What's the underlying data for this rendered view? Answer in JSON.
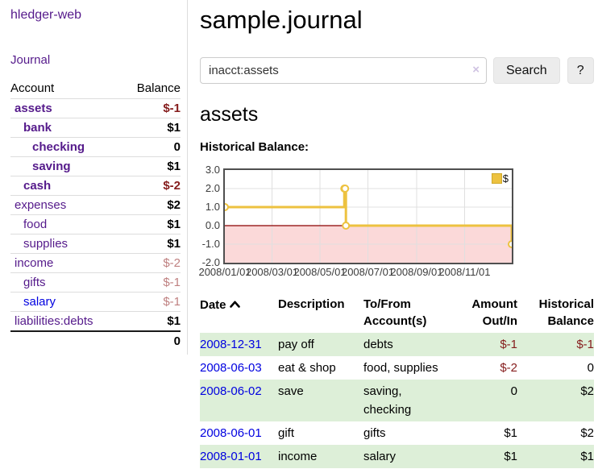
{
  "app": {
    "title": "hledger-web"
  },
  "sidebar": {
    "nav_journal": "Journal",
    "accounts": {
      "header_account": "Account",
      "header_balance": "Balance",
      "rows": [
        {
          "name": "assets",
          "balance": "$-1",
          "level": 0,
          "strong": true,
          "link": "purple",
          "neg": "strong"
        },
        {
          "name": "bank",
          "balance": "$1",
          "level": 1,
          "strong": true,
          "link": "purple",
          "neg": "none"
        },
        {
          "name": "checking",
          "balance": "0",
          "level": 2,
          "strong": true,
          "link": "purple",
          "neg": "none"
        },
        {
          "name": "saving",
          "balance": "$1",
          "level": 2,
          "strong": true,
          "link": "purple",
          "neg": "none"
        },
        {
          "name": "cash",
          "balance": "$-2",
          "level": 1,
          "strong": true,
          "link": "purple",
          "neg": "strong"
        },
        {
          "name": "expenses",
          "balance": "$2",
          "level": 0,
          "strong": false,
          "link": "purple",
          "neg": "none"
        },
        {
          "name": "food",
          "balance": "$1",
          "level": 1,
          "strong": false,
          "link": "purple",
          "neg": "none"
        },
        {
          "name": "supplies",
          "balance": "$1",
          "level": 1,
          "strong": false,
          "link": "purple",
          "neg": "none"
        },
        {
          "name": "income",
          "balance": "$-2",
          "level": 0,
          "strong": false,
          "link": "purple",
          "neg": "soft"
        },
        {
          "name": "gifts",
          "balance": "$-1",
          "level": 1,
          "strong": false,
          "link": "purple",
          "neg": "soft"
        },
        {
          "name": "salary",
          "balance": "$-1",
          "level": 1,
          "strong": false,
          "link": "blue",
          "neg": "soft"
        },
        {
          "name": "liabilities:debts",
          "balance": "$1",
          "level": 0,
          "strong": false,
          "link": "purple",
          "neg": "none"
        }
      ],
      "total": "0"
    }
  },
  "main": {
    "title": "sample.journal",
    "search": {
      "value": "inacct:assets",
      "clear_glyph": "×",
      "button_label": "Search",
      "help_label": "?"
    },
    "account_heading": "assets",
    "chart_label": "Historical Balance:",
    "register": {
      "headers": [
        "Date",
        "Description",
        "To/From Account(s)",
        "Amount Out/In",
        "Historical Balance"
      ],
      "sort": "asc",
      "rows": [
        {
          "date": "2008-12-31",
          "description": "pay off",
          "accounts": "debts",
          "amount": "$-1",
          "amount_neg": true,
          "balance": "$-1",
          "balance_neg": true,
          "shaded": true
        },
        {
          "date": "2008-06-03",
          "description": "eat & shop",
          "accounts": "food, supplies",
          "amount": "$-2",
          "amount_neg": true,
          "balance": "0",
          "balance_neg": false,
          "shaded": false
        },
        {
          "date": "2008-06-02",
          "description": "save",
          "accounts": "saving, checking",
          "amount": "0",
          "amount_neg": false,
          "balance": "$2",
          "balance_neg": false,
          "shaded": true
        },
        {
          "date": "2008-06-01",
          "description": "gift",
          "accounts": "gifts",
          "amount": "$1",
          "amount_neg": false,
          "balance": "$2",
          "balance_neg": false,
          "shaded": false
        },
        {
          "date": "2008-01-01",
          "description": "income",
          "accounts": "salary",
          "amount": "$1",
          "amount_neg": false,
          "balance": "$1",
          "balance_neg": false,
          "shaded": true
        }
      ]
    }
  },
  "chart_data": {
    "type": "line",
    "step": true,
    "title": "Historical Balance",
    "series": [
      {
        "name": "$",
        "color": "#edc240",
        "points": [
          [
            "2008-01-01",
            1
          ],
          [
            "2008-06-01",
            2
          ],
          [
            "2008-06-02",
            2
          ],
          [
            "2008-06-03",
            0
          ],
          [
            "2008-12-31",
            -1
          ]
        ]
      }
    ],
    "xlim": [
      "2008-01-01",
      "2008-12-31"
    ],
    "ylim": [
      -2,
      3
    ],
    "x_tick_labels": [
      "2008/01/01",
      "2008/03/01",
      "2008/05/01",
      "2008/07/01",
      "2008/09/01",
      "2008/11/01"
    ],
    "y_tick_labels": [
      "3.0",
      "2.0",
      "1.0",
      "0.0",
      "-1.0",
      "-2.0"
    ],
    "legend": {
      "label": "$",
      "position": "top-right"
    },
    "grid": true,
    "negative_region_color": "#fbd9d9",
    "zero_line_color": "#8b0000",
    "gridline_color": "#e0e0e0",
    "marker_fill": "#ffffff"
  },
  "colors": {
    "link_visited_purple": "#551a8b",
    "link_blue": "#0000e0",
    "negative_strong": "#851c1c",
    "negative_soft": "#bf8080",
    "row_stripe_green": "#ddefd8",
    "chart_gold": "#edc240",
    "chart_negative_region": "#fbd9d9",
    "chart_zero_line": "#8b0000"
  }
}
